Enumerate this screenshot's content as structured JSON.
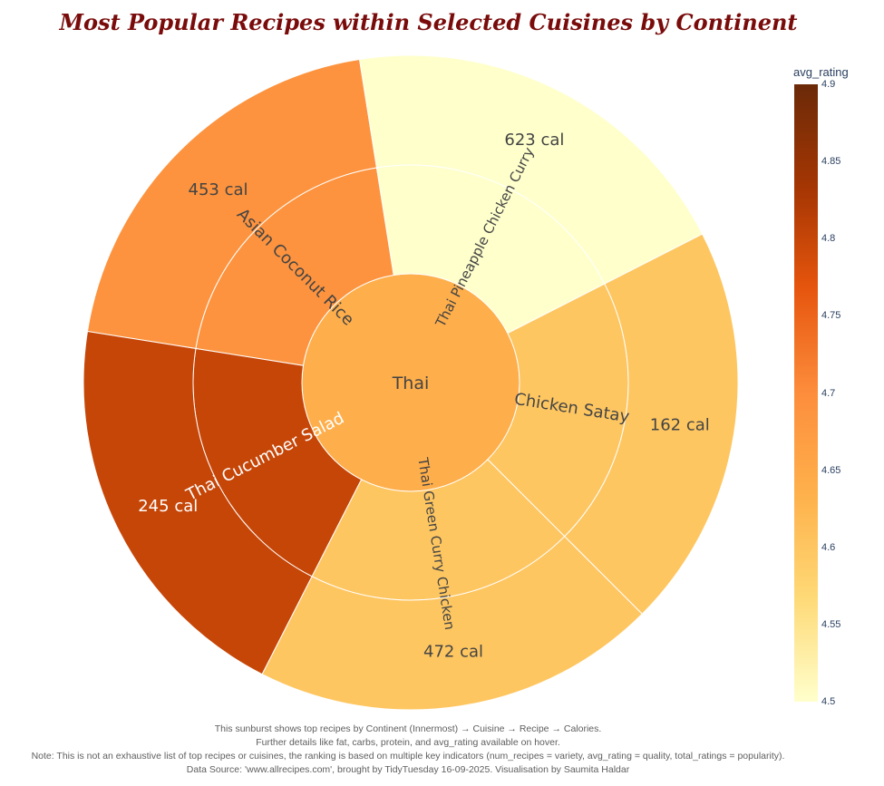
{
  "chart_data": {
    "type": "sunburst",
    "title": "Most Popular Recipes within Selected Cuisines by Continent",
    "root": {
      "label": "Thai",
      "avg_rating": 4.64
    },
    "recipes": [
      {
        "name": "Asian Coconut Rice",
        "calories_label": "453 cal",
        "calories": 453,
        "avg_rating": 4.69
      },
      {
        "name": "Thai Pineapple Chicken Curry",
        "calories_label": "623 cal",
        "calories": 623,
        "avg_rating": 4.5
      },
      {
        "name": "Chicken Satay",
        "calories_label": "162 cal",
        "calories": 162,
        "avg_rating": 4.6
      },
      {
        "name": "Thai Green Curry Chicken",
        "calories_label": "472 cal",
        "calories": 472,
        "avg_rating": 4.6
      },
      {
        "name": "Thai Cucumber Salad",
        "calories_label": "245 cal",
        "calories": 245,
        "avg_rating": 4.8
      }
    ],
    "colorbar": {
      "title": "avg_rating",
      "range": [
        4.5,
        4.9
      ],
      "ticks": [
        "4.5",
        "4.55",
        "4.6",
        "4.65",
        "4.7",
        "4.75",
        "4.8",
        "4.85",
        "4.9"
      ],
      "scale": [
        "#ffffcc",
        "#fed976",
        "#feb24c",
        "#fd8d3c",
        "#e6550d",
        "#a63603",
        "#6b2a08"
      ]
    }
  },
  "footnote": {
    "line1": "This sunburst shows top recipes by Continent (Innermost) → Cuisine → Recipe → Calories.",
    "line2": "Further details like fat, carbs, protein, and avg_rating available on hover.",
    "line3": "Note: This is not an exhaustive list of top recipes or cuisines, the ranking is based on multiple key indicators (num_recipes = variety, avg_rating = quality, total_ratings = popularity).",
    "line4": "Data Source: 'www.allrecipes.com', brought by TidyTuesday 16-09-2025. Visualisation by Saumita Haldar"
  }
}
